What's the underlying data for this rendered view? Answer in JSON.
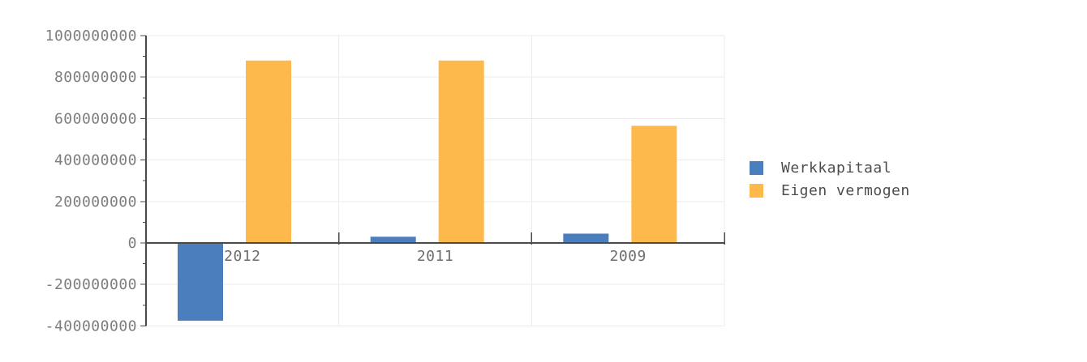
{
  "chart_data": {
    "type": "bar",
    "categories": [
      "2012",
      "2011",
      "2009"
    ],
    "series": [
      {
        "name": "Werkkapitaal",
        "color": "#4A7EBC",
        "values": [
          -375000000,
          30000000,
          45000000
        ]
      },
      {
        "name": "Eigen vermogen",
        "color": "#FDB94B",
        "values": [
          880000000,
          880000000,
          565000000
        ]
      }
    ],
    "xlabel": "",
    "ylabel": "",
    "ylim": [
      -400000000,
      1000000000
    ],
    "y_ticks": [
      {
        "value": 1000000000,
        "label": "1000000000"
      },
      {
        "value": 800000000,
        "label": "800000000"
      },
      {
        "value": 600000000,
        "label": "600000000"
      },
      {
        "value": 400000000,
        "label": "400000000"
      },
      {
        "value": 200000000,
        "label": "200000000"
      },
      {
        "value": 0,
        "label": "0"
      },
      {
        "value": -200000000,
        "label": "-200000000"
      },
      {
        "value": -400000000,
        "label": "-400000000"
      }
    ],
    "y_minor_step": 100000000,
    "grid": true,
    "legend_position": "right",
    "style": {
      "grid_color": "#ebebeb",
      "axis_color": "#4a4a4a",
      "tick_label_color": "#7d7d7d",
      "category_label_color": "#6d6d6d",
      "legend_text_color": "#4d4d4d",
      "background": "#ffffff"
    }
  }
}
